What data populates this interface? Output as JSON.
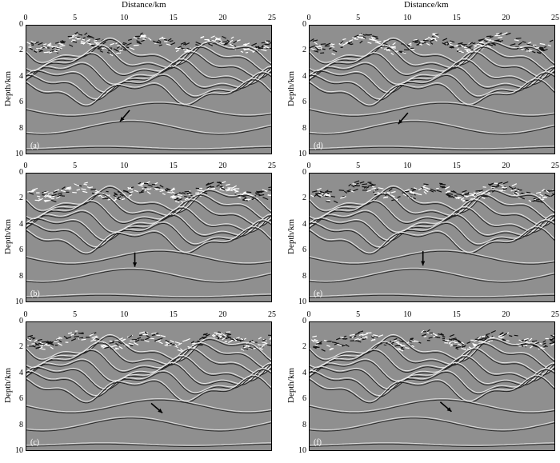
{
  "figure": {
    "xlabel": "Distance/km",
    "ylabel": "Depth/km",
    "xticks": [
      "0",
      "5",
      "10",
      "15",
      "20",
      "25"
    ],
    "yticks": [
      "0",
      "2",
      "4",
      "6",
      "8",
      "10"
    ],
    "xlim": [
      0,
      25
    ],
    "ylim": [
      0,
      10
    ]
  },
  "panels": [
    {
      "label": "(a)",
      "column": "left",
      "arrow": {
        "x": 9.5,
        "y": 7.4,
        "direction": "down-left"
      }
    },
    {
      "label": "(b)",
      "column": "left",
      "arrow": {
        "x": 11.0,
        "y": 7.2,
        "direction": "down"
      }
    },
    {
      "label": "(c)",
      "column": "left",
      "arrow": {
        "x": 13.8,
        "y": 7.0,
        "direction": "down-right"
      }
    },
    {
      "label": "(d)",
      "column": "right",
      "arrow": {
        "x": 9.0,
        "y": 7.6,
        "direction": "down-left"
      }
    },
    {
      "label": "(e)",
      "column": "right",
      "arrow": {
        "x": 11.5,
        "y": 7.1,
        "direction": "down"
      }
    },
    {
      "label": "(f)",
      "column": "right",
      "arrow": {
        "x": 14.4,
        "y": 6.9,
        "direction": "down-right"
      }
    }
  ]
}
